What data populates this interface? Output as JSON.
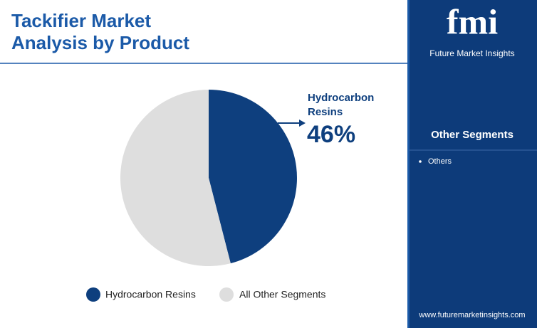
{
  "chart_data": {
    "type": "pie",
    "title": "Tackifier Market Analysis by Product",
    "categories": [
      "Hydrocarbon Resins",
      "All Other Segments"
    ],
    "values": [
      46,
      54
    ],
    "value_labels": [
      "46%",
      null
    ],
    "colors": [
      "#0e3f7e",
      "#dedede"
    ],
    "legend": "bottom"
  },
  "sidebar": {
    "logo": "fmi",
    "brand": "Future Market Insights",
    "heading": "Other Segments",
    "items": [
      "Others"
    ],
    "url": "www.futuremarketinsights.com"
  }
}
